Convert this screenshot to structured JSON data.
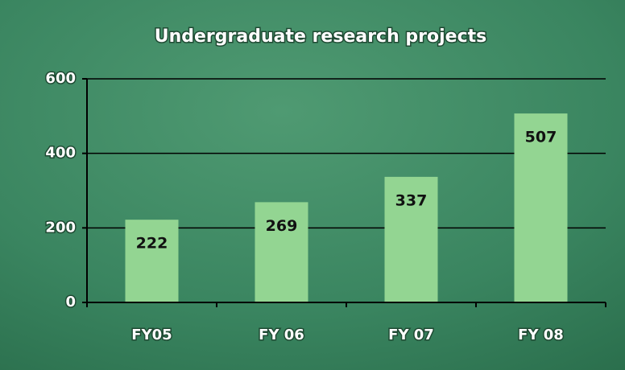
{
  "chart_data": {
    "type": "bar",
    "title": "Undergraduate research projects",
    "categories": [
      "FY05",
      "FY 06",
      "FY 07",
      "FY 08"
    ],
    "values": [
      222,
      269,
      337,
      507
    ],
    "color": "#93d592",
    "ylim": [
      0,
      600
    ],
    "yticks": [
      0,
      200,
      400,
      600
    ],
    "grid": true
  }
}
